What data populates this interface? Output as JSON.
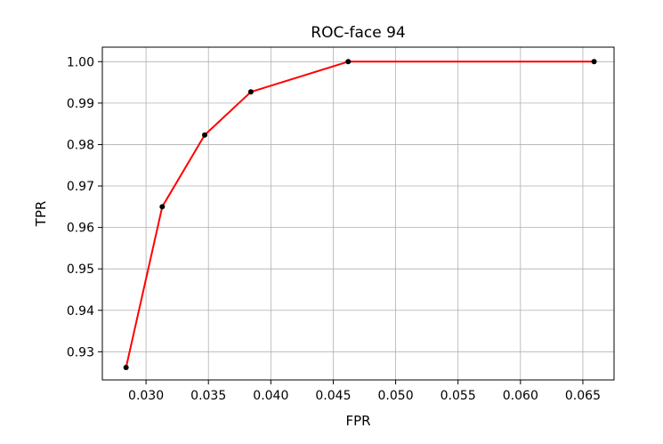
{
  "chart_data": {
    "type": "line",
    "title": "ROC-face 94",
    "xlabel": "FPR",
    "ylabel": "TPR",
    "xlim": [
      0.0265,
      0.0675
    ],
    "ylim": [
      0.9232,
      1.0035
    ],
    "xticks": [
      0.03,
      0.035,
      0.04,
      0.045,
      0.05,
      0.055,
      0.06,
      0.065
    ],
    "xtick_labels": [
      "0.030",
      "0.035",
      "0.040",
      "0.045",
      "0.050",
      "0.055",
      "0.060",
      "0.065"
    ],
    "yticks": [
      0.93,
      0.94,
      0.95,
      0.96,
      0.97,
      0.98,
      0.99,
      1.0
    ],
    "ytick_labels": [
      "0.93",
      "0.94",
      "0.95",
      "0.96",
      "0.97",
      "0.98",
      "0.99",
      "1.00"
    ],
    "grid": true,
    "series": [
      {
        "x": [
          0.0284,
          0.0313,
          0.0347,
          0.0384,
          0.0462,
          0.0659
        ],
        "y": [
          0.9262,
          0.965,
          0.9823,
          0.9927,
          1.0,
          1.0
        ],
        "color": "#ff0000",
        "marker_color": "#000000"
      }
    ]
  }
}
